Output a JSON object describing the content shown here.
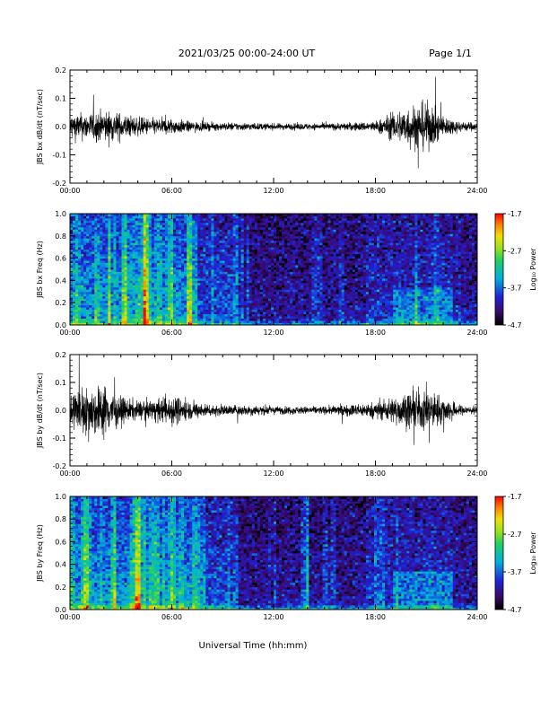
{
  "header": {
    "title": "2021/03/25  00:00-24:00 UT",
    "page": "Page 1/1"
  },
  "xlabel": "Universal Time (hh:mm)",
  "colorbar": {
    "label": "Log₁₀ Power",
    "ticks": [
      "-1.7",
      "-2.7",
      "-3.7",
      "-4.7"
    ]
  },
  "chart_data": [
    {
      "type": "line",
      "title": "",
      "ylabel": "JBS bx dB/dt (nT/sec)",
      "xlim": [
        0,
        24
      ],
      "ylim": [
        -0.2,
        0.2
      ],
      "xticks": [
        "00:00",
        "06:00",
        "12:00",
        "18:00",
        "24:00"
      ],
      "yticks": [
        "0.2",
        "0.1",
        "0.0",
        "-0.1",
        "-0.2"
      ],
      "envelope": {
        "x_hours": [
          0,
          1,
          2,
          3,
          4,
          5,
          6,
          7,
          8,
          9,
          10,
          11,
          12,
          13,
          14,
          15,
          16,
          17,
          18,
          19,
          20,
          21,
          22,
          23,
          24
        ],
        "amplitude": [
          0.05,
          0.05,
          0.06,
          0.05,
          0.035,
          0.03,
          0.03,
          0.02,
          0.015,
          0.015,
          0.015,
          0.013,
          0.012,
          0.012,
          0.012,
          0.012,
          0.014,
          0.016,
          0.02,
          0.05,
          0.08,
          0.09,
          0.04,
          0.02,
          0.015
        ]
      }
    },
    {
      "type": "heatmap",
      "title": "",
      "ylabel": "JBS bx Freq (Hz)",
      "xlim": [
        0,
        24
      ],
      "ylim": [
        0,
        1
      ],
      "zlim": [
        -4.7,
        -1.7
      ],
      "zlabel": "Log₁₀ Power",
      "xticks": [
        "00:00",
        "06:00",
        "12:00",
        "18:00",
        "24:00"
      ],
      "yticks": [
        "1.0",
        "0.8",
        "0.6",
        "0.4",
        "0.2",
        "0.0"
      ]
    },
    {
      "type": "line",
      "title": "",
      "ylabel": "JBS by dB/dt (nT/sec)",
      "xlim": [
        0,
        24
      ],
      "ylim": [
        -0.2,
        0.2
      ],
      "xticks": [
        "00:00",
        "06:00",
        "12:00",
        "18:00",
        "24:00"
      ],
      "yticks": [
        "0.2",
        "0.1",
        "0.0",
        "-0.1",
        "-0.2"
      ],
      "envelope": {
        "x_hours": [
          0,
          1,
          2,
          3,
          4,
          5,
          6,
          7,
          8,
          9,
          10,
          11,
          12,
          13,
          14,
          15,
          16,
          17,
          18,
          19,
          20,
          21,
          22,
          23,
          24
        ],
        "amplitude": [
          0.08,
          0.09,
          0.1,
          0.05,
          0.035,
          0.04,
          0.06,
          0.035,
          0.025,
          0.02,
          0.02,
          0.02,
          0.015,
          0.015,
          0.015,
          0.015,
          0.02,
          0.025,
          0.03,
          0.05,
          0.07,
          0.08,
          0.05,
          0.02,
          0.015
        ]
      }
    },
    {
      "type": "heatmap",
      "title": "",
      "ylabel": "JBS by Freq (Hz)",
      "xlim": [
        0,
        24
      ],
      "ylim": [
        0,
        1
      ],
      "zlim": [
        -4.7,
        -1.7
      ],
      "zlabel": "Log₁₀ Power",
      "xticks": [
        "00:00",
        "06:00",
        "12:00",
        "18:00",
        "24:00"
      ],
      "yticks": [
        "1.0",
        "0.8",
        "0.6",
        "0.4",
        "0.2",
        "0.0"
      ]
    }
  ]
}
